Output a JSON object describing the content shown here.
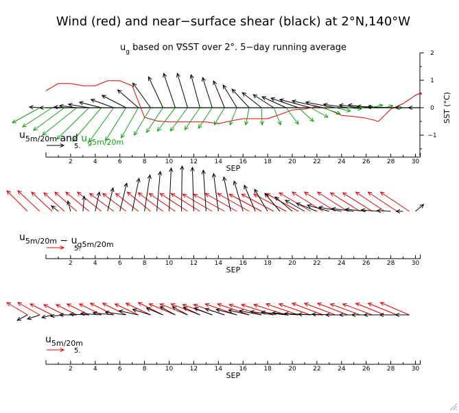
{
  "title": "Wind (red) and near−surface shear (black) at 2°N,140°W",
  "subtitle": {
    "var": "u",
    "sub": "g",
    "rest": " based on ∇SST over 2°. 5−day running average"
  },
  "sst_axis": {
    "label": "SST (°C)",
    "ticks": [
      "2",
      "1",
      "0",
      "−1"
    ]
  },
  "panels": [
    {
      "label_parts": [
        {
          "t": "u",
          "color": "#000000"
        },
        {
          "t": "5m/20m",
          "color": "#000000",
          "sub": true
        },
        {
          "t": " and ",
          "color": "#000000"
        },
        {
          "t": "u",
          "color": "#12a012"
        },
        {
          "t": "g5m/20m",
          "color": "#12a012",
          "sub": true
        }
      ],
      "ref_value": "5.",
      "ref_color": "#000000",
      "x_label": "SEP",
      "x_ticks": [
        "2",
        "4",
        "6",
        "8",
        "10",
        "12",
        "14",
        "16",
        "18",
        "20",
        "22",
        "24",
        "26",
        "28",
        "30"
      ]
    },
    {
      "label_parts": [
        {
          "t": "u",
          "color": "#000000"
        },
        {
          "t": "5m/20m",
          "color": "#000000",
          "sub": true
        },
        {
          "t": " − u",
          "color": "#000000"
        },
        {
          "t": "g5m/20m",
          "color": "#000000",
          "sub": true
        }
      ],
      "ref_value": "5.",
      "ref_color": "#e00000",
      "x_label": "SEP",
      "x_ticks": [
        "2",
        "4",
        "6",
        "8",
        "10",
        "12",
        "14",
        "16",
        "18",
        "20",
        "22",
        "24",
        "26",
        "28",
        "30"
      ]
    },
    {
      "label_parts": [
        {
          "t": "u",
          "color": "#000000"
        },
        {
          "t": "5m/20m",
          "color": "#000000",
          "sub": true
        }
      ],
      "ref_value": "5.",
      "ref_color": "#e00000",
      "x_label": "SEP",
      "x_ticks": [
        "2",
        "4",
        "6",
        "8",
        "10",
        "12",
        "14",
        "16",
        "18",
        "20",
        "22",
        "24",
        "26",
        "28",
        "30"
      ]
    }
  ],
  "colors": {
    "wind": "#e00000",
    "shear": "#000000",
    "geostrophic": "#12a012",
    "sst": "#e00000"
  },
  "chart_data": [
    {
      "type": "line",
      "panel": "top",
      "x_unit": "day of September",
      "xlim": [
        0,
        30.5
      ],
      "series": [
        {
          "name": "SST",
          "color": "#e00000",
          "x": [
            0,
            1,
            2,
            3,
            4,
            5,
            6,
            7,
            8,
            9,
            10,
            11,
            12,
            13,
            14,
            15,
            16,
            17,
            18,
            19,
            20,
            21,
            22,
            23,
            24,
            25,
            26,
            27,
            28,
            29,
            30,
            30.5
          ],
          "y": [
            0.62,
            0.88,
            0.88,
            0.8,
            0.8,
            0.98,
            0.98,
            0.8,
            -0.35,
            -0.48,
            -0.52,
            -0.52,
            -0.52,
            -0.52,
            -0.58,
            -0.48,
            -0.4,
            -0.4,
            -0.4,
            -0.25,
            -0.08,
            -0.05,
            0.05,
            -0.08,
            -0.28,
            -0.32,
            -0.38,
            -0.5,
            -0.05,
            0.15,
            0.45,
            0.55
          ]
        }
      ],
      "ylim": [
        -1.75,
        2.0
      ],
      "ylabel": "SST (°C)"
    },
    {
      "type": "vector",
      "panel": "top",
      "reference_length": 5,
      "x_unit": "day of September",
      "series": [
        {
          "name": "u5m/20m",
          "color": "#000000",
          "x": [
            -0.5,
            0.5,
            1.5,
            2.5,
            3.5,
            4.5,
            5.5,
            6.5,
            7.5,
            8.5,
            9.5,
            10.5,
            11.5,
            12.5,
            13.5,
            14.5,
            15.5,
            16.5,
            17.5,
            18.5,
            19.5,
            20.5,
            21.5,
            22.5,
            23.5,
            24.5,
            25.5,
            26.5,
            27.5,
            28.5,
            29.5,
            30.0
          ],
          "u": [
            -1.5,
            -1.8,
            -1.5,
            -2.5,
            -3.0,
            -3.2,
            -3.3,
            -3.5,
            -3.0,
            -2.6,
            -2.1,
            -1.7,
            -1.5,
            -1.3,
            -1.4,
            -1.6,
            -2.0,
            -2.5,
            -2.8,
            -3.0,
            -3.5,
            -4.0,
            -4.5,
            -4.5,
            -4.3,
            -3.5,
            -3.0,
            -3.5,
            -4.0,
            -4.3,
            -2.0,
            -1.0
          ],
          "v": [
            0.1,
            0.0,
            0.1,
            0.3,
            0.5,
            0.8,
            1.2,
            1.8,
            2.6,
            3.6,
            4.5,
            5.0,
            5.0,
            4.8,
            4.4,
            3.9,
            3.3,
            2.7,
            2.2,
            1.9,
            1.6,
            1.4,
            1.2,
            1.0,
            0.8,
            0.5,
            0.4,
            0.4,
            0.2,
            0.1,
            0.0,
            0.0
          ]
        },
        {
          "name": "ug5m/20m",
          "color": "#12a012",
          "x": [
            -0.5,
            0.5,
            1.5,
            2.5,
            3.5,
            4.5,
            5.5,
            6.5,
            7.5,
            8.5,
            9.5,
            10.5,
            11.5,
            12.5,
            13.5,
            14.5,
            15.5,
            16.5,
            17.5,
            18.5,
            19.5,
            20.5,
            21.5,
            22.5,
            23.5,
            24.5,
            25.5,
            26.5,
            27.5,
            28.5
          ],
          "u": [
            -4.0,
            -4.3,
            -4.5,
            -5.0,
            -4.7,
            -4.2,
            -3.6,
            -3.0,
            -2.5,
            -2.4,
            -2.4,
            -2.6,
            -2.5,
            -2.2,
            -2.0,
            -1.5,
            -1.0,
            -0.5,
            0.1,
            1.0,
            1.8,
            2.2,
            2.5,
            2.5,
            2.2,
            2.0,
            1.8,
            1.5,
            1.2,
            0.8
          ],
          "v": [
            -2.2,
            -2.8,
            -3.3,
            -4.0,
            -4.6,
            -4.9,
            -5.0,
            -4.8,
            -4.4,
            -4.0,
            -3.6,
            -3.4,
            -3.4,
            -3.2,
            -3.0,
            -2.5,
            -2.5,
            -2.5,
            -2.5,
            -2.5,
            -2.4,
            -2.0,
            -1.4,
            -0.9,
            -0.5,
            -0.2,
            0.2,
            0.4,
            0.3,
            0.0
          ]
        }
      ]
    },
    {
      "type": "vector",
      "panel": "middle",
      "reference_length": 5,
      "x_unit": "day of September",
      "series": [
        {
          "name": "u5m/20m − ug5m/20m",
          "color": "#000000",
          "x": [
            1.0,
            2.0,
            3.0,
            4.0,
            5.0,
            6.0,
            7.0,
            8.0,
            9.0,
            10.0,
            11.0,
            12.0,
            13.0,
            14.0,
            15.0,
            16.0,
            17.0,
            18.0,
            19.0,
            20.0,
            21.0,
            22.0,
            23.0,
            24.0,
            25.0,
            26.0,
            27.0,
            28.0,
            29.0,
            30.0
          ],
          "u": [
            -1.0,
            -0.4,
            0.2,
            0.6,
            0.8,
            1.0,
            1.0,
            0.8,
            0.5,
            0.3,
            0.1,
            -0.2,
            -0.4,
            -0.7,
            -1.0,
            -1.3,
            -1.6,
            -1.9,
            -2.2,
            -2.5,
            -2.8,
            -3.0,
            -3.2,
            -3.3,
            -3.2,
            -3.0,
            -2.5,
            -2.0,
            -1.0,
            1.2
          ],
          "v": [
            0.8,
            1.5,
            2.2,
            2.8,
            3.4,
            4.1,
            4.8,
            5.3,
            5.8,
            6.3,
            6.6,
            6.4,
            6.0,
            5.5,
            5.0,
            4.4,
            3.8,
            3.2,
            2.6,
            2.1,
            1.6,
            1.2,
            0.9,
            0.6,
            0.4,
            0.3,
            0.2,
            0.1,
            0.0,
            1.0
          ]
        }
      ]
    },
    {
      "type": "vector",
      "panel": "middle",
      "reference_length": 5,
      "x_unit": "day of September",
      "series": [
        {
          "name": "wind",
          "color": "#e00000",
          "x": [
            -1.5,
            -0.5,
            0.5,
            1.5,
            2.5,
            3.5,
            4.5,
            5.5,
            6.5,
            7.5,
            8.5,
            9.5,
            10.5,
            11.5,
            12.5,
            13.5,
            14.5,
            15.5,
            16.5,
            17.5,
            18.5,
            19.5,
            20.5,
            21.5,
            22.5,
            23.5,
            24.5,
            25.5,
            26.5,
            27.5,
            28.5,
            29.5
          ],
          "u": [
            -3.0,
            -3.2,
            -3.0,
            -3.0,
            -3.2,
            -3.4,
            -3.5,
            -3.5,
            -3.4,
            -3.3,
            -3.4,
            -3.6,
            -3.8,
            -4.0,
            -4.2,
            -4.3,
            -4.5,
            -4.6,
            -4.6,
            -4.7,
            -4.7,
            -4.7,
            -4.7,
            -4.6,
            -4.5,
            -4.5,
            -4.4,
            -4.3,
            -4.3,
            -4.2,
            -4.2,
            -4.2
          ],
          "v": [
            3.0,
            3.0,
            2.8,
            2.7,
            2.8,
            2.8,
            2.8,
            2.6,
            2.6,
            2.6,
            2.8,
            2.7,
            2.6,
            2.6,
            2.6,
            2.5,
            2.5,
            2.6,
            2.6,
            2.5,
            2.5,
            2.5,
            2.6,
            2.7,
            2.8,
            2.8,
            2.8,
            2.7,
            2.7,
            2.8,
            2.8,
            2.8
          ]
        }
      ]
    },
    {
      "type": "vector",
      "panel": "bottom",
      "reference_length": 5,
      "x_unit": "day of September",
      "series": [
        {
          "name": "wind",
          "color": "#e00000",
          "x": [
            -1.5,
            -0.5,
            0.5,
            1.5,
            2.5,
            3.5,
            4.5,
            5.5,
            6.5,
            7.5,
            8.5,
            9.5,
            10.5,
            11.5,
            12.5,
            13.5,
            14.5,
            15.5,
            16.5,
            17.5,
            18.5,
            19.5,
            20.5,
            21.5,
            22.5,
            23.5,
            24.5,
            25.5,
            26.5,
            27.5,
            28.5,
            29.5
          ],
          "u": [
            -3.0,
            -3.2,
            -3.2,
            -3.0,
            -3.0,
            -3.2,
            -3.2,
            -3.4,
            -3.4,
            -3.4,
            -3.6,
            -3.6,
            -3.8,
            -4.0,
            -4.2,
            -4.3,
            -4.5,
            -4.6,
            -4.6,
            -4.7,
            -4.7,
            -4.7,
            -4.7,
            -4.6,
            -4.5,
            -4.5,
            -4.4,
            -4.3,
            -4.3,
            -4.2,
            -4.2,
            -4.2
          ],
          "v": [
            1.8,
            1.8,
            1.6,
            1.5,
            1.5,
            1.6,
            1.6,
            1.7,
            1.7,
            1.6,
            1.7,
            1.8,
            1.6,
            1.6,
            1.6,
            1.5,
            1.5,
            1.6,
            1.6,
            1.5,
            1.5,
            1.5,
            1.6,
            1.6,
            1.7,
            1.7,
            1.7,
            1.6,
            1.6,
            1.7,
            1.7,
            1.8
          ]
        },
        {
          "name": "shear",
          "color": "#000000",
          "x": [
            -1.5,
            -0.5,
            0.5,
            1.5,
            2.5,
            3.5,
            4.5,
            5.5,
            6.5,
            7.5,
            8.5,
            9.5,
            10.5,
            11.5,
            12.5,
            13.5,
            14.5,
            15.5,
            16.5,
            17.5,
            18.5,
            19.5,
            20.5,
            21.5,
            22.5,
            23.5,
            24.5,
            25.5,
            26.5,
            27.5,
            28.5,
            29.5
          ],
          "u": [
            -1.5,
            -1.8,
            -1.5,
            -2.0,
            -2.5,
            -2.8,
            -3.0,
            -3.0,
            -3.0,
            -2.8,
            -2.6,
            -2.4,
            -2.2,
            -2.2,
            -2.4,
            -2.6,
            -2.8,
            -3.0,
            -3.0,
            -3.2,
            -3.4,
            -3.6,
            -3.8,
            -3.8,
            -3.6,
            -3.4,
            -3.2,
            -3.0,
            -3.0,
            -3.0,
            -2.5,
            -2.0
          ],
          "v": [
            -0.8,
            -0.6,
            -0.4,
            -0.2,
            0.0,
            0.1,
            0.2,
            0.3,
            0.4,
            0.6,
            0.8,
            1.0,
            1.2,
            1.2,
            1.1,
            1.0,
            0.9,
            0.8,
            0.7,
            0.6,
            0.5,
            0.4,
            0.3,
            0.2,
            0.1,
            0.1,
            0.0,
            0.0,
            0.0,
            0.0,
            0.0,
            0.0
          ]
        }
      ]
    }
  ]
}
